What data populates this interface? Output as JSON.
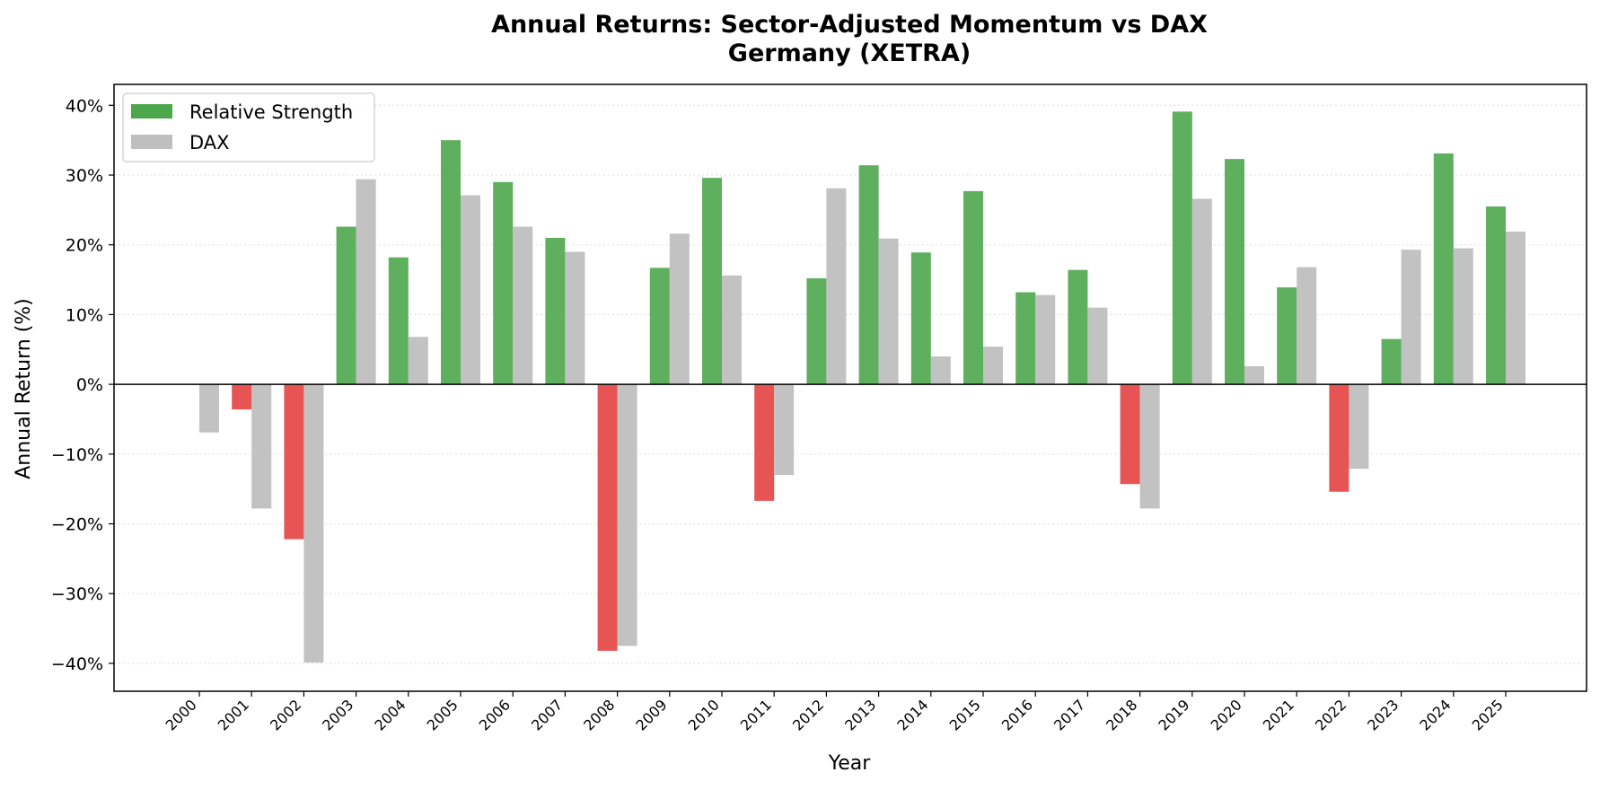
{
  "chart_data": {
    "type": "bar",
    "title": "Annual Returns: Sector-Adjusted Momentum vs DAX",
    "subtitle": "Germany (XETRA)",
    "xlabel": "Year",
    "ylabel": "Annual Return (%)",
    "ylim": [
      -44,
      43
    ],
    "yticks": [
      -40,
      -30,
      -20,
      -10,
      0,
      10,
      20,
      30,
      40
    ],
    "ytick_labels": [
      "−40%",
      "−30%",
      "−20%",
      "−10%",
      "0%",
      "10%",
      "20%",
      "30%",
      "40%"
    ],
    "grid": "horizontal dotted",
    "legend_position": "top-left",
    "categories": [
      "2000",
      "2001",
      "2002",
      "2003",
      "2004",
      "2005",
      "2006",
      "2007",
      "2008",
      "2009",
      "2010",
      "2011",
      "2012",
      "2013",
      "2014",
      "2015",
      "2016",
      "2017",
      "2018",
      "2019",
      "2020",
      "2021",
      "2022",
      "2023",
      "2024",
      "2025"
    ],
    "series": [
      {
        "name": "Relative Strength",
        "color": "#4ca64c",
        "negative_color": "#e34141",
        "values": [
          0.0,
          -3.6,
          -22.2,
          22.6,
          18.2,
          35.0,
          29.0,
          21.0,
          -38.2,
          16.7,
          29.6,
          -16.7,
          15.2,
          31.4,
          18.9,
          27.7,
          13.2,
          16.4,
          -14.3,
          39.1,
          32.3,
          13.9,
          -15.4,
          6.5,
          33.1,
          25.5
        ]
      },
      {
        "name": "DAX",
        "color": "#bfbfbf",
        "values": [
          -6.9,
          -17.8,
          -39.9,
          29.4,
          6.8,
          27.1,
          22.6,
          19.0,
          -37.5,
          21.6,
          15.6,
          -13.0,
          28.1,
          20.9,
          4.0,
          5.4,
          12.8,
          11.0,
          -17.8,
          26.6,
          2.6,
          16.8,
          -12.1,
          19.3,
          19.5,
          21.9
        ]
      }
    ]
  }
}
